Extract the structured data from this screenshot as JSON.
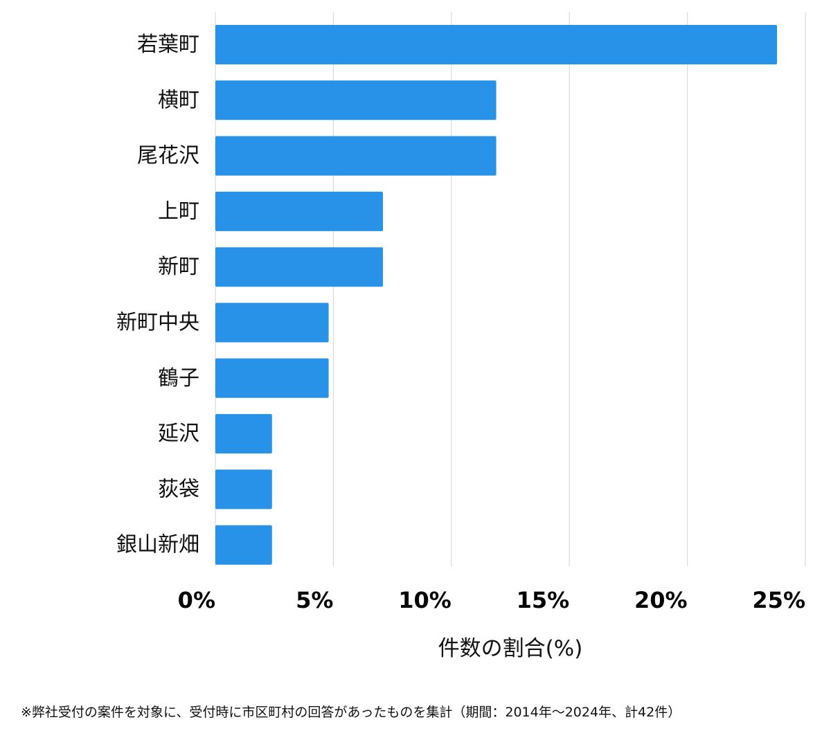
{
  "chart_data": {
    "type": "bar",
    "orientation": "horizontal",
    "categories": [
      "若葉町",
      "横町",
      "尾花沢",
      "上町",
      "新町",
      "新町中央",
      "鶴子",
      "延沢",
      "荻袋",
      "銀山新畑"
    ],
    "values": [
      23.8,
      11.9,
      11.9,
      7.1,
      7.1,
      4.8,
      4.8,
      2.4,
      2.4,
      2.4
    ],
    "xlabel": "件数の割合(%)",
    "ylabel": "",
    "xlim": [
      0,
      25
    ],
    "ticks": [
      "0%",
      "5%",
      "10%",
      "15%",
      "20%",
      "25%"
    ],
    "tick_values": [
      0,
      5,
      10,
      15,
      20,
      25
    ],
    "grid": true,
    "bar_color": "#2892E8",
    "grid_color": "#D9D9D9"
  },
  "footnote": "※弊社受付の案件を対象に、受付時に市区町村の回答があったものを集計（期間：2014年～2024年、計42件）"
}
